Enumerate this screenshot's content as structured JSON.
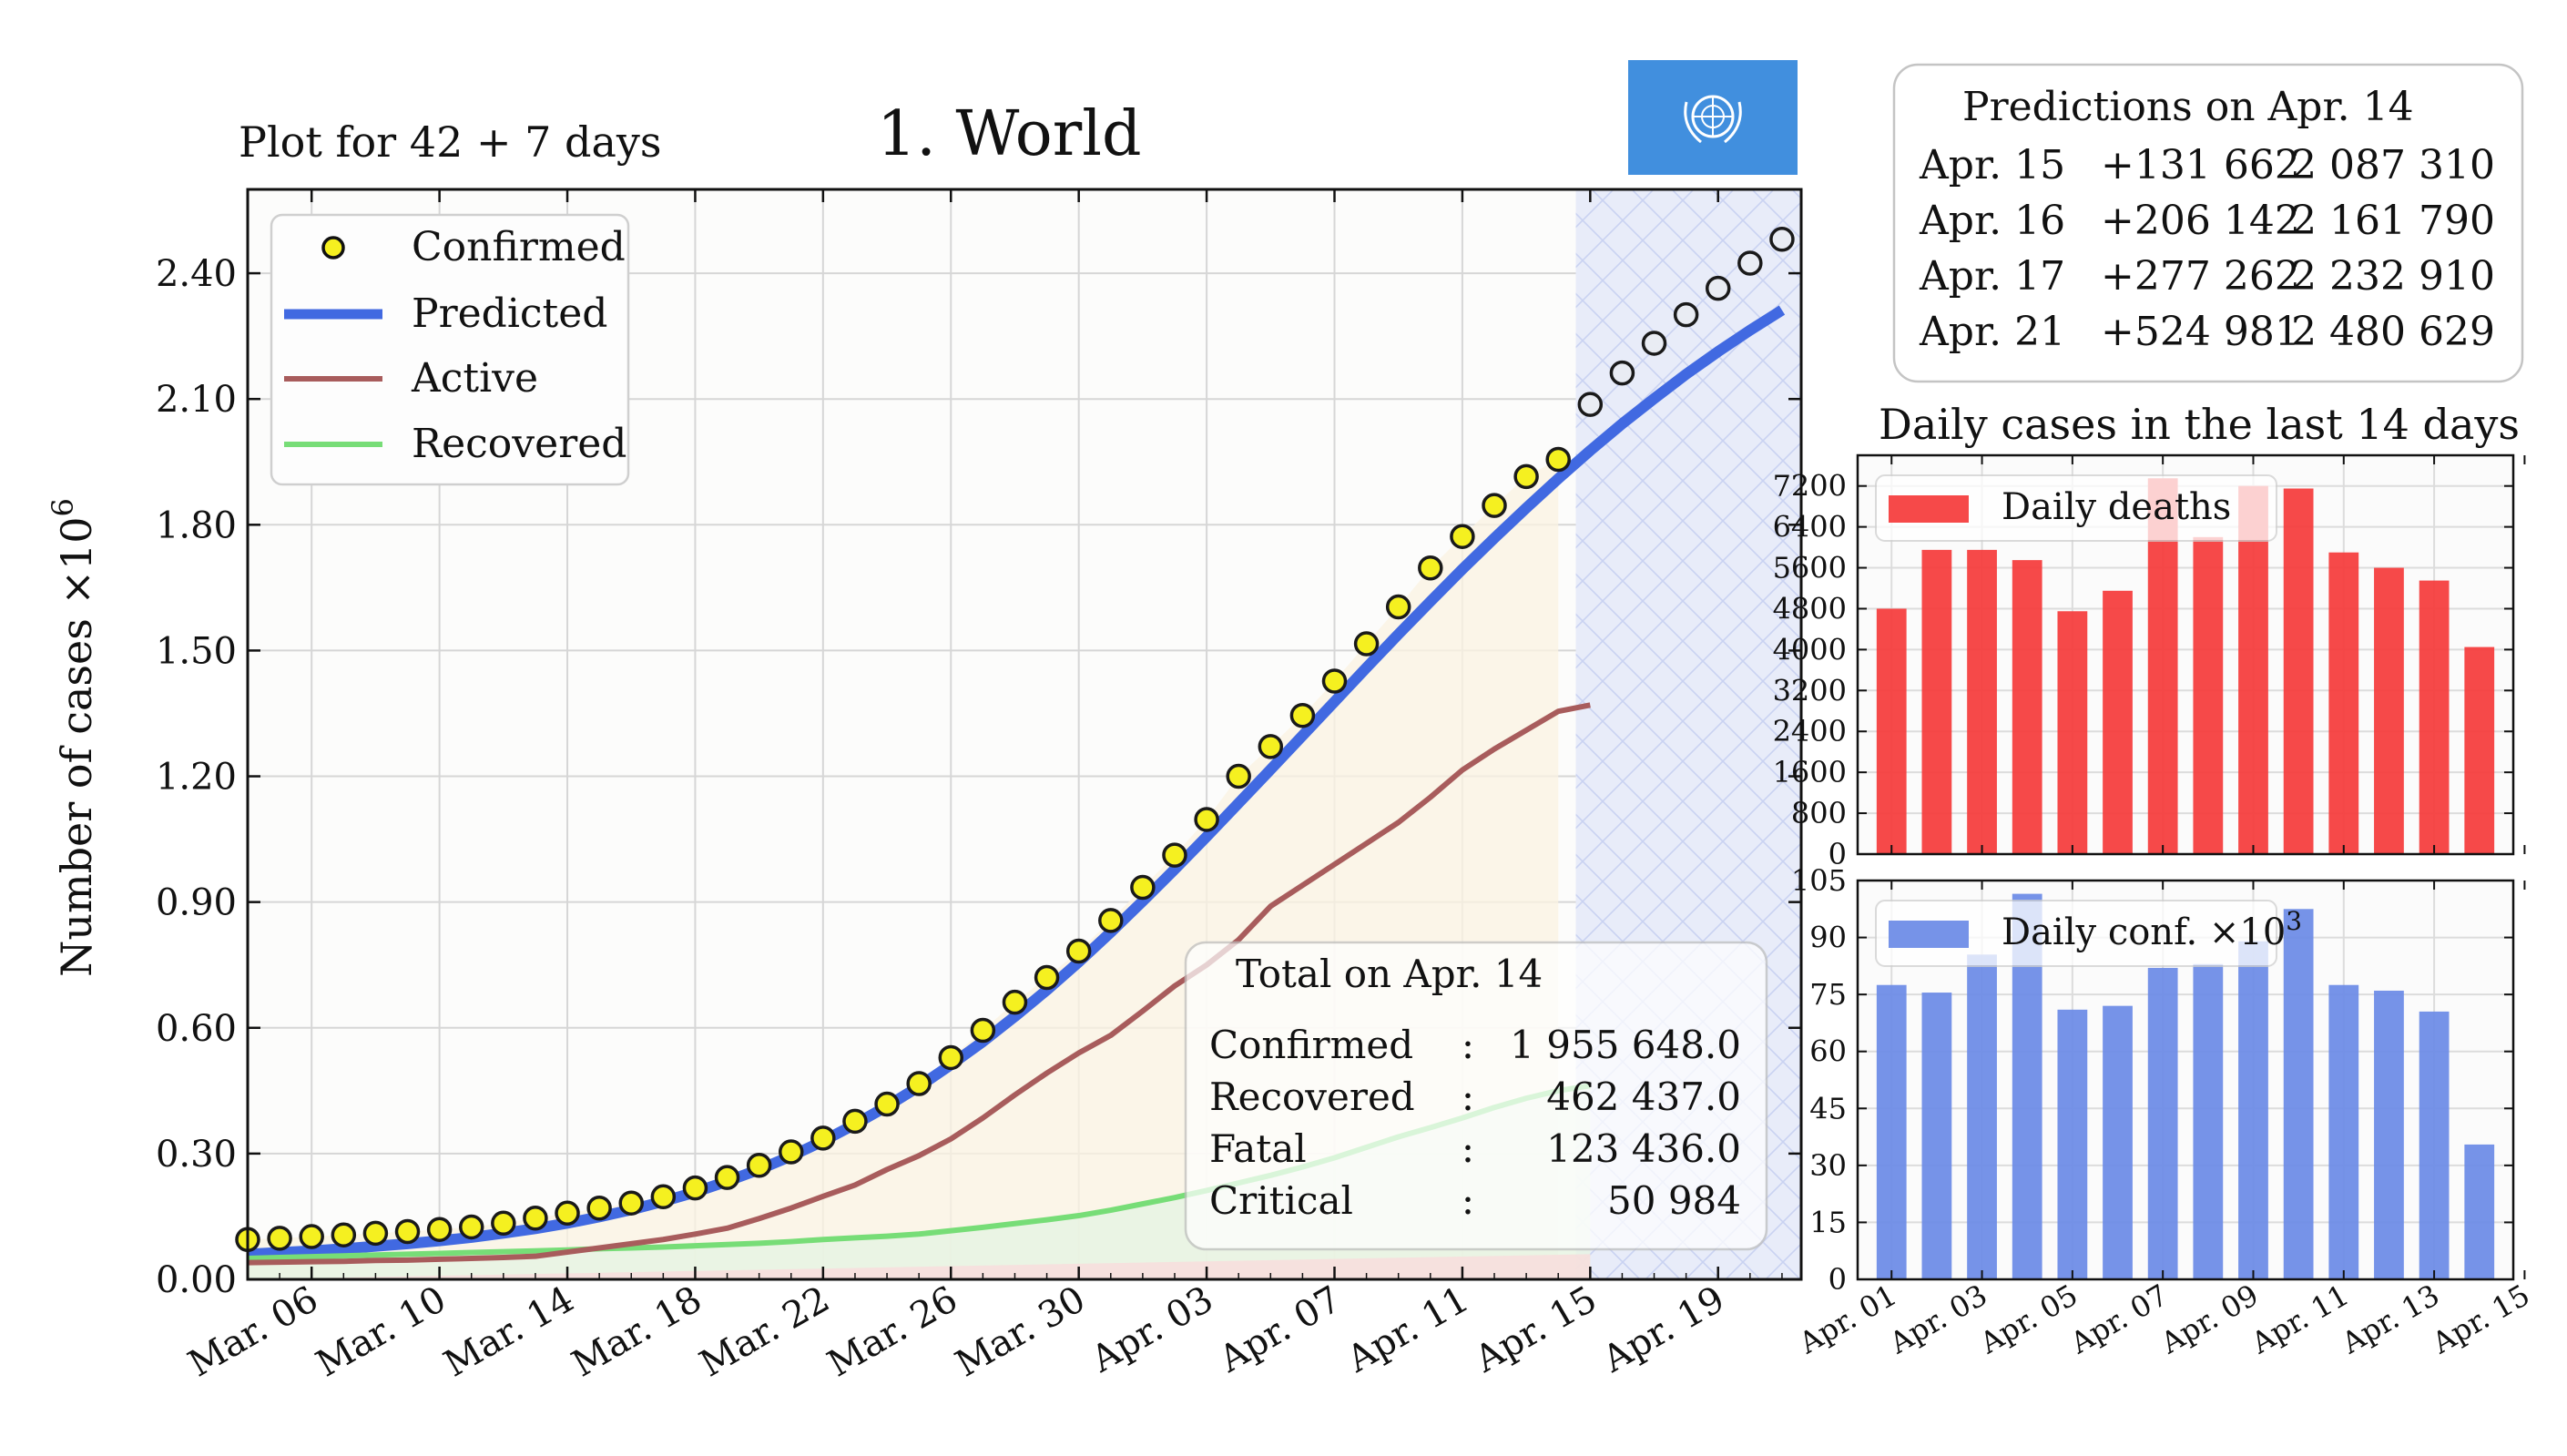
{
  "header": {
    "subtitle": "Plot for 42 + 7 days",
    "title": "1.  World",
    "flag_icon": "un-flag-icon",
    "flag_color": "#418fde"
  },
  "colors": {
    "confirmed_fill": "#f5f020",
    "predicted": "#4169e1",
    "active": "#a85c5c",
    "recovered": "#77dd77",
    "deaths_bar": "#f53a3a",
    "conf_bar": "#6a8ae6",
    "forecast_band": "#e8ecf9"
  },
  "predictions": {
    "title": "Predictions on Apr. 14",
    "rows": [
      {
        "date": "Apr. 15",
        "delta": "+131 662",
        "total": "2 087 310"
      },
      {
        "date": "Apr. 16",
        "delta": "+206 142",
        "total": "2 161 790"
      },
      {
        "date": "Apr. 17",
        "delta": "+277 262",
        "total": "2 232 910"
      },
      {
        "date": "Apr. 21",
        "delta": "+524 981",
        "total": "2 480 629"
      }
    ]
  },
  "totals": {
    "title": "Total on Apr. 14",
    "rows": [
      {
        "label": "Confirmed",
        "sep": ":",
        "value": "1 955 648.0"
      },
      {
        "label": "Recovered",
        "sep": ":",
        "value": "462 437.0"
      },
      {
        "label": "Fatal",
        "sep": ":",
        "value": "123 436.0"
      },
      {
        "label": "Critical",
        "sep": ":",
        "value": "50 984"
      }
    ]
  },
  "chart_data": [
    {
      "type": "line",
      "ylabel": "Number of cases ×10",
      "ylabel_exponent": "6",
      "ylim": [
        0,
        2.6
      ],
      "y_ticks": [
        "0.00",
        "0.30",
        "0.60",
        "0.90",
        "1.20",
        "1.50",
        "1.80",
        "2.10",
        "2.40"
      ],
      "x_tick_labels": [
        "Mar. 06",
        "Mar. 10",
        "Mar. 14",
        "Mar. 18",
        "Mar. 22",
        "Mar. 26",
        "Mar. 30",
        "Apr. 03",
        "Apr. 07",
        "Apr. 11",
        "Apr. 15",
        "Apr. 19"
      ],
      "x_start": "Mar. 04",
      "forecast_from": "Apr. 14",
      "grid": true,
      "legend": {
        "position": "top-left",
        "items": [
          "Confirmed",
          "Predicted",
          "Active",
          "Recovered"
        ]
      },
      "series": [
        {
          "name": "Confirmed",
          "kind": "markers",
          "values": [
            0.095,
            0.098,
            0.102,
            0.106,
            0.11,
            0.114,
            0.119,
            0.125,
            0.134,
            0.146,
            0.158,
            0.17,
            0.182,
            0.197,
            0.218,
            0.243,
            0.272,
            0.304,
            0.337,
            0.377,
            0.418,
            0.467,
            0.529,
            0.594,
            0.661,
            0.72,
            0.783,
            0.856,
            0.935,
            1.012,
            1.097,
            1.2,
            1.271,
            1.345,
            1.427,
            1.516,
            1.604,
            1.697,
            1.772,
            1.846,
            1.915,
            1.956
          ]
        },
        {
          "name": "Predicted forecast",
          "kind": "markers_open",
          "values": [
            2.087,
            2.162,
            2.233,
            2.301,
            2.364,
            2.424,
            2.481
          ]
        },
        {
          "name": "Predicted",
          "kind": "line",
          "values": [
            0.06,
            0.064,
            0.068,
            0.073,
            0.079,
            0.085,
            0.092,
            0.1,
            0.11,
            0.121,
            0.134,
            0.149,
            0.166,
            0.186,
            0.208,
            0.234,
            0.262,
            0.294,
            0.33,
            0.37,
            0.413,
            0.46,
            0.512,
            0.567,
            0.627,
            0.69,
            0.757,
            0.828,
            0.902,
            0.978,
            1.056,
            1.136,
            1.216,
            1.297,
            1.378,
            1.459,
            1.539,
            1.617,
            1.694,
            1.768,
            1.84,
            1.91,
            1.977,
            2.041,
            2.101,
            2.159,
            2.213,
            2.264,
            2.312
          ]
        },
        {
          "name": "Active",
          "kind": "line",
          "values": [
            0.04,
            0.041,
            0.042,
            0.043,
            0.045,
            0.046,
            0.048,
            0.05,
            0.052,
            0.055,
            0.065,
            0.075,
            0.085,
            0.095,
            0.108,
            0.122,
            0.145,
            0.17,
            0.198,
            0.225,
            0.262,
            0.295,
            0.335,
            0.385,
            0.44,
            0.492,
            0.54,
            0.582,
            0.64,
            0.7,
            0.75,
            0.81,
            0.89,
            0.94,
            0.99,
            1.04,
            1.09,
            1.15,
            1.215,
            1.265,
            1.31,
            1.355,
            1.37
          ]
        },
        {
          "name": "Recovered",
          "kind": "line",
          "values": [
            0.05,
            0.052,
            0.054,
            0.056,
            0.058,
            0.06,
            0.062,
            0.064,
            0.066,
            0.068,
            0.07,
            0.073,
            0.075,
            0.077,
            0.08,
            0.083,
            0.086,
            0.09,
            0.095,
            0.099,
            0.103,
            0.108,
            0.116,
            0.124,
            0.133,
            0.142,
            0.152,
            0.165,
            0.18,
            0.195,
            0.212,
            0.23,
            0.248,
            0.268,
            0.29,
            0.315,
            0.34,
            0.362,
            0.385,
            0.41,
            0.432,
            0.45,
            0.462
          ]
        }
      ]
    },
    {
      "type": "bar",
      "title": "Daily cases in the last 14 days",
      "legend": {
        "position": "top-left",
        "items": [
          "Daily deaths"
        ]
      },
      "ylim": [
        0,
        7800
      ],
      "y_ticks": [
        "0",
        "800",
        "1600",
        "2400",
        "3200",
        "4000",
        "4800",
        "5600",
        "6400",
        "7200"
      ],
      "categories": [
        "Apr. 01",
        "Apr. 02",
        "Apr. 03",
        "Apr. 04",
        "Apr. 05",
        "Apr. 06",
        "Apr. 07",
        "Apr. 08",
        "Apr. 09",
        "Apr. 10",
        "Apr. 11",
        "Apr. 12",
        "Apr. 13",
        "Apr. 14"
      ],
      "series": [
        {
          "name": "Daily deaths",
          "values": [
            4800,
            5950,
            5950,
            5750,
            4750,
            5150,
            7350,
            6200,
            7200,
            7150,
            5900,
            5600,
            5350,
            4050
          ]
        }
      ]
    },
    {
      "type": "bar",
      "legend": {
        "position": "top-left",
        "items": [
          "Daily conf. ×10"
        ],
        "exponent": "3"
      },
      "ylim": [
        0,
        105
      ],
      "y_ticks": [
        "0",
        "15",
        "30",
        "45",
        "60",
        "75",
        "90",
        "105"
      ],
      "categories": [
        "Apr. 01",
        "Apr. 02",
        "Apr. 03",
        "Apr. 04",
        "Apr. 05",
        "Apr. 06",
        "Apr. 07",
        "Apr. 08",
        "Apr. 09",
        "Apr. 10",
        "Apr. 11",
        "Apr. 12",
        "Apr. 13",
        "Apr. 14"
      ],
      "x_tick_labels": [
        "Apr. 01",
        "Apr. 03",
        "Apr. 05",
        "Apr. 07",
        "Apr. 09",
        "Apr. 11",
        "Apr. 13",
        "Apr. 15"
      ],
      "series": [
        {
          "name": "Daily conf. ×10³",
          "values": [
            77.5,
            75.5,
            85.5,
            101.5,
            71.0,
            72.0,
            82.0,
            83.0,
            89.0,
            97.5,
            77.5,
            76.0,
            70.5,
            35.5
          ]
        }
      ]
    }
  ]
}
